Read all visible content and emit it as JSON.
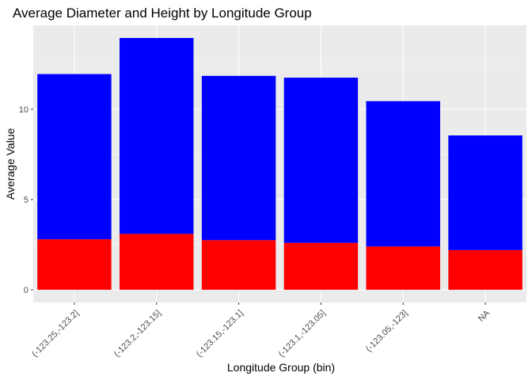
{
  "chart_data": {
    "type": "bar",
    "stacked": true,
    "title": "Average Diameter and Height by Longitude Group",
    "xlabel": "Longitude Group (bin)",
    "ylabel": "Average Value",
    "categories": [
      "(-123.25,-123.2]",
      "(-123.2,-123.15]",
      "(-123.15,-123.1]",
      "(-123.1,-123.05]",
      "(-123.05,-123]",
      "NA"
    ],
    "series": [
      {
        "color": "#ff0000",
        "values": [
          2.8,
          3.1,
          2.75,
          2.6,
          2.4,
          2.2
        ]
      },
      {
        "color": "#0000ff",
        "values": [
          9.15,
          10.85,
          9.1,
          9.15,
          8.05,
          6.35
        ]
      }
    ],
    "totals": [
      11.95,
      13.95,
      11.85,
      11.75,
      10.45,
      8.55
    ],
    "ylim": [
      -0.7,
      14.65
    ],
    "yticks": [
      0,
      5,
      10
    ],
    "grid": true,
    "legend": "none",
    "panel_background": "#ebebeb",
    "gridline_color": "#ffffff"
  }
}
